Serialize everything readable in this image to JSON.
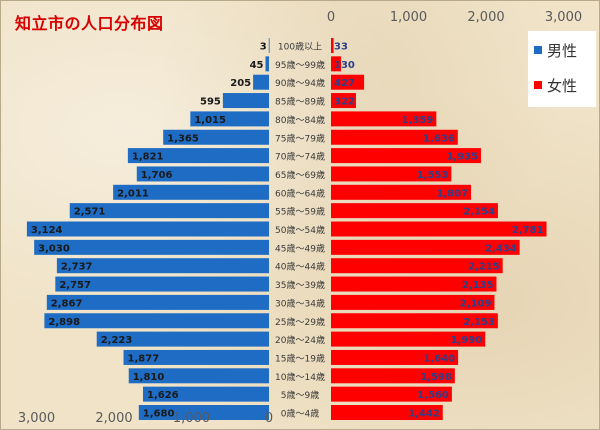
{
  "chart_data": {
    "type": "bar",
    "title": "知立市の人口分布図",
    "categories": [
      "100歳以上",
      "95歳～99歳",
      "90歳～94歳",
      "85歳～89歳",
      "80歳～84歳",
      "75歳～79歳",
      "70歳～74歳",
      "65歳～69歳",
      "60歳～64歳",
      "55歳～59歳",
      "50歳～54歳",
      "45歳～49歳",
      "40歳～44歳",
      "35歳～39歳",
      "30歳～34歳",
      "25歳～29歳",
      "20歳～24歳",
      "15歳～19歳",
      "10歳～14歳",
      "5歳～9歳",
      "0歳～4歳"
    ],
    "series": [
      {
        "name": "男性",
        "values": [
          3,
          45,
          205,
          595,
          1015,
          1365,
          1821,
          1706,
          2011,
          2571,
          3124,
          3030,
          2737,
          2757,
          2867,
          2898,
          2223,
          1877,
          1810,
          1626,
          1680
        ]
      },
      {
        "name": "女性",
        "values": [
          33,
          130,
          427,
          322,
          1359,
          1636,
          1935,
          1553,
          1807,
          2154,
          2781,
          2434,
          2215,
          2135,
          2109,
          2153,
          1990,
          1640,
          1598,
          1560,
          1442
        ]
      }
    ],
    "value_labels": [
      [
        "3",
        "45",
        "205",
        "595",
        "1,015",
        "1,365",
        "1,821",
        "1,706",
        "2,011",
        "2,571",
        "3,124",
        "3,030",
        "2,737",
        "2,757",
        "2,867",
        "2,898",
        "2,223",
        "1,877",
        "1,810",
        "1,626",
        "1,680"
      ],
      [
        "33",
        "130",
        "427",
        "322",
        "1,359",
        "1,636",
        "1,935",
        "1,553",
        "1,807",
        "2,154",
        "2,781",
        "2,434",
        "2,215",
        "2,135",
        "2,109",
        "2,153",
        "1,990",
        "1,640",
        "1,598",
        "1,560",
        "1,442"
      ]
    ],
    "male_axis_ticks": [
      "3,000",
      "2,000",
      "1,000",
      "0"
    ],
    "male_axis_values": [
      3000,
      2000,
      1000,
      0
    ],
    "female_axis_ticks": [
      "0",
      "1,000",
      "2,000",
      "3,000"
    ],
    "female_axis_values": [
      0,
      1000,
      2000,
      3000
    ],
    "xlim": [
      0,
      3000
    ],
    "legend": "top-right",
    "grid": false
  },
  "colors": {
    "male": "#1e6cc4",
    "female": "#ff0000",
    "title": "#d80000",
    "axis_text": "#5a5a5a",
    "label_dark": "#1a1a1a",
    "label_female": "#2e3f8a"
  }
}
